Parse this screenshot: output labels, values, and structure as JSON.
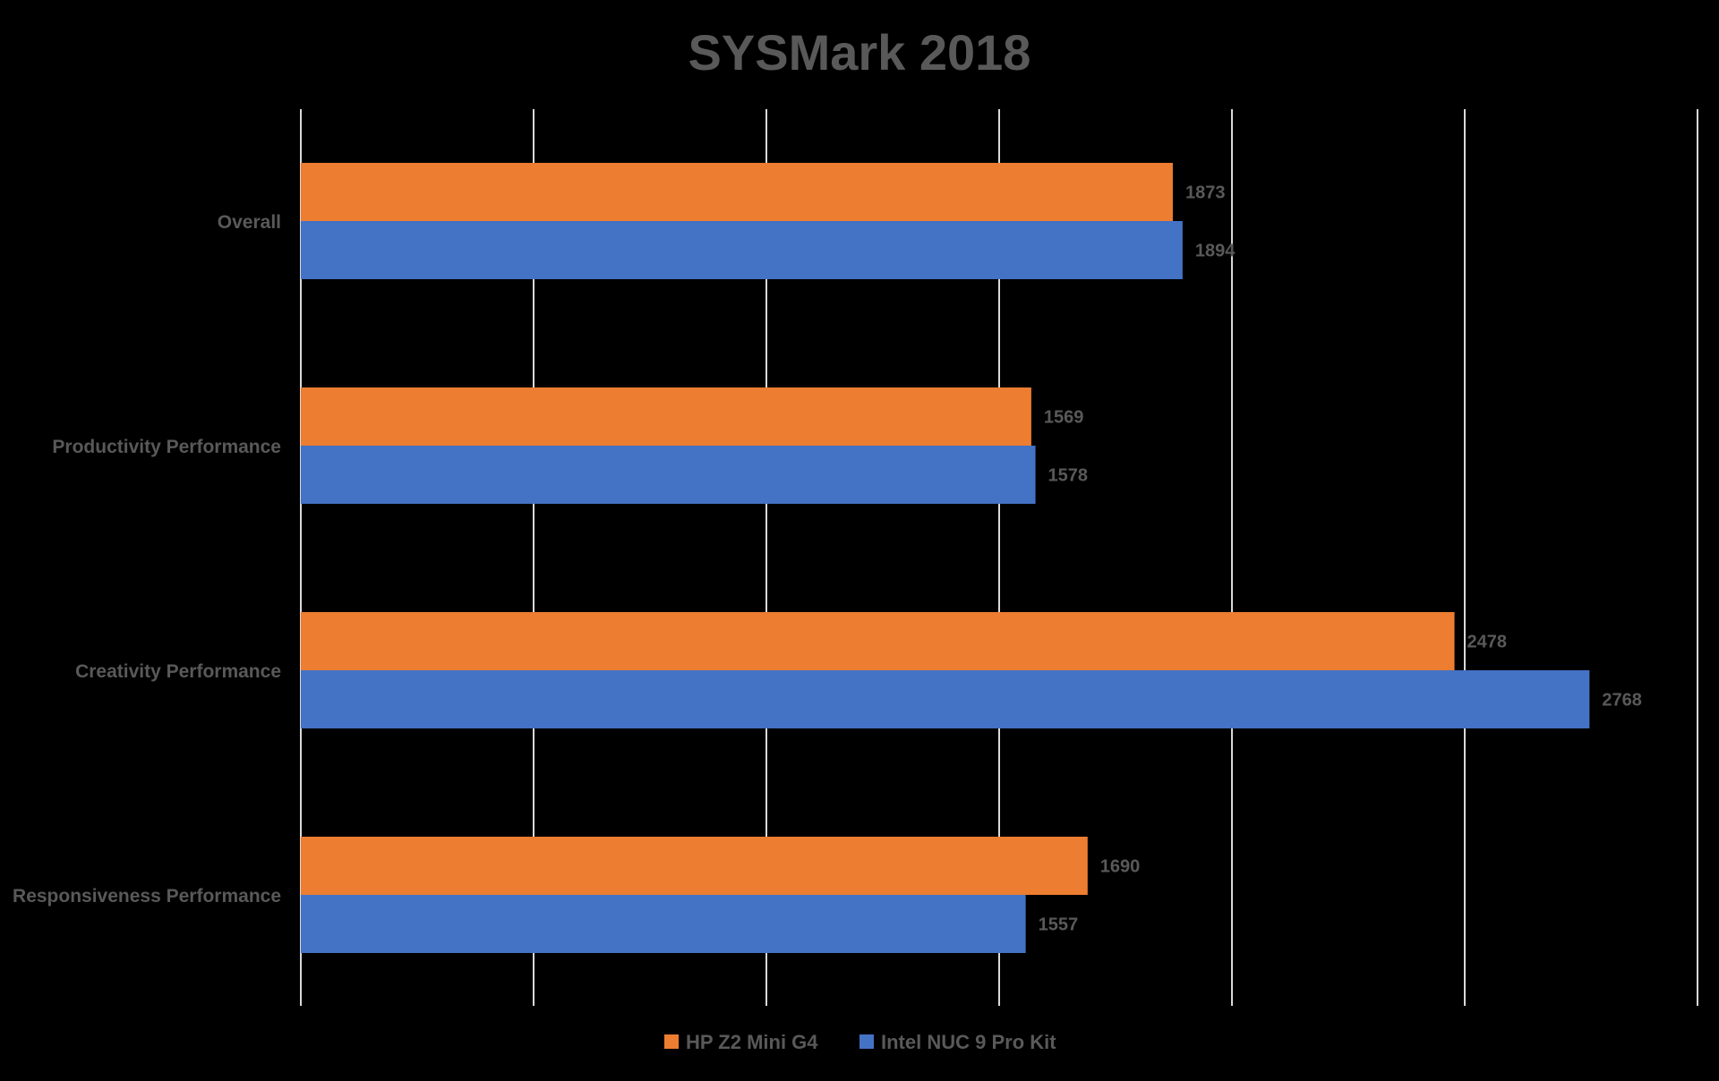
{
  "chart_data": {
    "type": "bar",
    "orientation": "horizontal",
    "title": "SYSMark 2018",
    "categories": [
      "Overall",
      "Productivity Performance",
      "Creativity Performance",
      "Responsiveness Performance"
    ],
    "series": [
      {
        "name": "HP Z2 Mini G4",
        "color": "#ED7D31",
        "values": [
          1873,
          1569,
          2478,
          1690
        ]
      },
      {
        "name": "Intel NUC 9 Pro Kit",
        "color": "#4472C4",
        "values": [
          1894,
          1578,
          2768,
          1557
        ]
      }
    ],
    "xlim": [
      0,
      3000
    ],
    "x_major_step": 500,
    "x_tick_labels_shown": false,
    "grid": true,
    "gridline_color": "#D9D9D9",
    "label_color": "#595959",
    "legend": "bottom",
    "data_labels": true
  }
}
